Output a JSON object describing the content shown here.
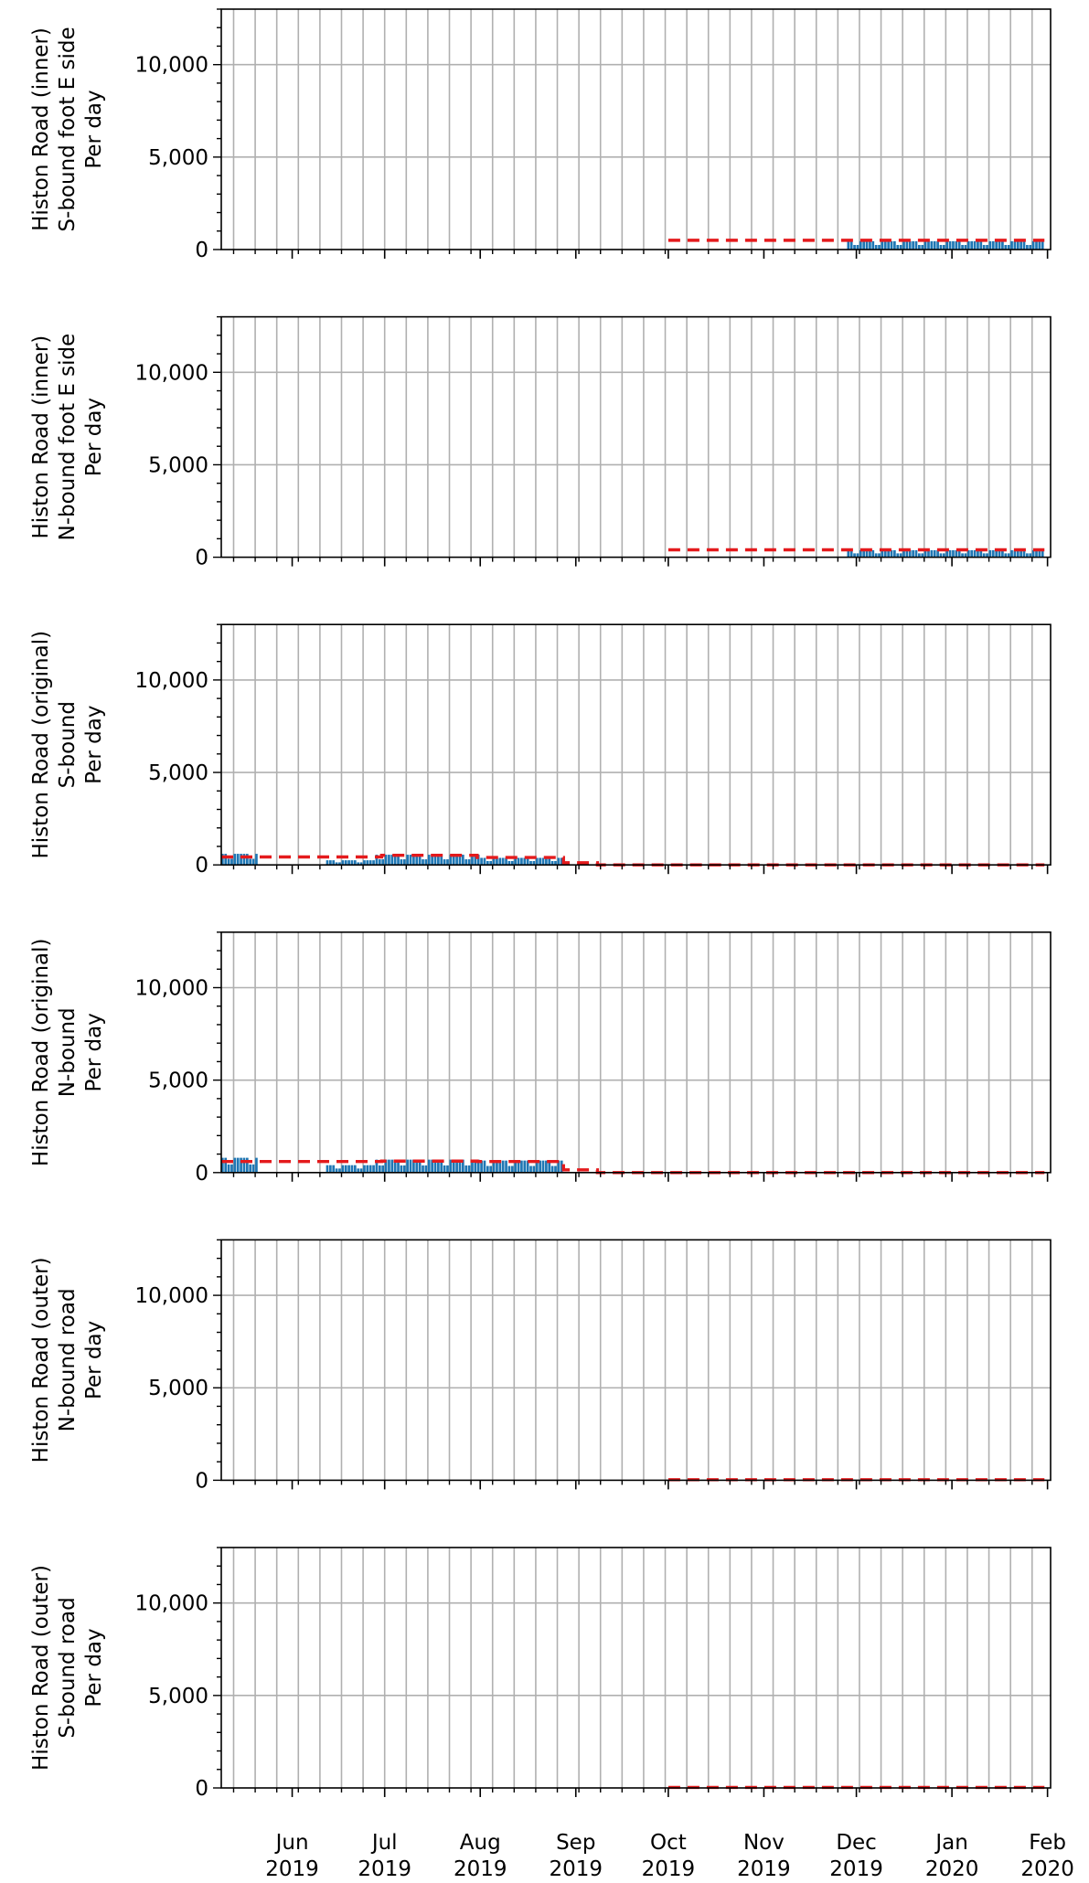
{
  "figure": {
    "colors": {
      "bars": "#1f77b4",
      "average_line": "#e41a1c",
      "grid": "#b0b0b0",
      "axes": "#000000"
    },
    "x_ticks": [
      {
        "month": "Jun",
        "year": "2019",
        "date": "2019-06-01"
      },
      {
        "month": "Jul",
        "year": "2019",
        "date": "2019-07-01"
      },
      {
        "month": "Aug",
        "year": "2019",
        "date": "2019-08-01"
      },
      {
        "month": "Sep",
        "year": "2019",
        "date": "2019-09-01"
      },
      {
        "month": "Oct",
        "year": "2019",
        "date": "2019-10-01"
      },
      {
        "month": "Nov",
        "year": "2019",
        "date": "2019-11-01"
      },
      {
        "month": "Dec",
        "year": "2019",
        "date": "2019-12-01"
      },
      {
        "month": "Jan",
        "year": "2020",
        "date": "2020-01-01"
      },
      {
        "month": "Feb",
        "year": "2020",
        "date": "2020-02-01"
      }
    ],
    "y_ticks": [
      "0",
      "5,000",
      "10,000"
    ]
  },
  "chart_data": [
    {
      "type": "bar",
      "ylabel": [
        "Histon Road (inner)",
        "S-bound foot E side",
        "Per day"
      ],
      "xlim": [
        "2019-05-09",
        "2020-02-02"
      ],
      "ylim": [
        0,
        13000
      ],
      "grid": true,
      "bars": [
        {
          "start": "2019-11-28",
          "end": "2020-01-31",
          "value": 450
        }
      ],
      "average": [
        {
          "start": "2019-10-01",
          "end": "2020-01-31",
          "value": 500
        }
      ]
    },
    {
      "type": "bar",
      "ylabel": [
        "Histon Road (inner)",
        "N-bound foot E side",
        "Per day"
      ],
      "xlim": [
        "2019-05-09",
        "2020-02-02"
      ],
      "ylim": [
        0,
        13000
      ],
      "grid": true,
      "bars": [
        {
          "start": "2019-11-28",
          "end": "2020-01-31",
          "value": 380
        }
      ],
      "average": [
        {
          "start": "2019-10-01",
          "end": "2020-01-31",
          "value": 400
        }
      ]
    },
    {
      "type": "bar",
      "ylabel": [
        "Histon Road (original)",
        "S-bound",
        "Per day"
      ],
      "xlim": [
        "2019-05-09",
        "2020-02-02"
      ],
      "ylim": [
        0,
        13000
      ],
      "grid": true,
      "bars": [
        {
          "start": "2019-05-09",
          "end": "2019-05-21",
          "value": 600
        },
        {
          "start": "2019-06-12",
          "end": "2019-06-28",
          "value": 250
        },
        {
          "start": "2019-06-28",
          "end": "2019-08-01",
          "value": 550
        },
        {
          "start": "2019-08-01",
          "end": "2019-08-28",
          "value": 380
        }
      ],
      "average": [
        {
          "start": "2019-05-09",
          "end": "2019-06-30",
          "value": 430
        },
        {
          "start": "2019-06-30",
          "end": "2019-07-31",
          "value": 520
        },
        {
          "start": "2019-07-31",
          "end": "2019-08-28",
          "value": 400
        },
        {
          "start": "2019-08-28",
          "end": "2019-09-08",
          "value": 120
        },
        {
          "start": "2019-09-08",
          "end": "2020-01-31",
          "value": 0
        }
      ]
    },
    {
      "type": "bar",
      "ylabel": [
        "Histon Road (original)",
        "N-bound",
        "Per day"
      ],
      "xlim": [
        "2019-05-09",
        "2020-02-02"
      ],
      "ylim": [
        0,
        13000
      ],
      "grid": true,
      "bars": [
        {
          "start": "2019-05-09",
          "end": "2019-05-21",
          "value": 800
        },
        {
          "start": "2019-06-12",
          "end": "2019-06-28",
          "value": 400
        },
        {
          "start": "2019-06-28",
          "end": "2019-08-01",
          "value": 700
        },
        {
          "start": "2019-08-01",
          "end": "2019-08-28",
          "value": 650
        }
      ],
      "average": [
        {
          "start": "2019-05-09",
          "end": "2019-06-30",
          "value": 600
        },
        {
          "start": "2019-06-30",
          "end": "2019-07-31",
          "value": 620
        },
        {
          "start": "2019-07-31",
          "end": "2019-08-28",
          "value": 600
        },
        {
          "start": "2019-08-28",
          "end": "2019-09-08",
          "value": 150
        },
        {
          "start": "2019-09-08",
          "end": "2020-01-31",
          "value": 0
        }
      ]
    },
    {
      "type": "bar",
      "ylabel": [
        "Histon Road (outer)",
        "N-bound road",
        "Per day"
      ],
      "xlim": [
        "2019-05-09",
        "2020-02-02"
      ],
      "ylim": [
        0,
        13000
      ],
      "grid": true,
      "bars": [],
      "average": [
        {
          "start": "2019-10-01",
          "end": "2020-01-31",
          "value": 30
        }
      ]
    },
    {
      "type": "bar",
      "ylabel": [
        "Histon Road (outer)",
        "S-bound road",
        "Per day"
      ],
      "xlim": [
        "2019-05-09",
        "2020-02-02"
      ],
      "ylim": [
        0,
        13000
      ],
      "grid": true,
      "bars": [],
      "average": [
        {
          "start": "2019-10-01",
          "end": "2020-01-31",
          "value": 30
        }
      ]
    }
  ]
}
